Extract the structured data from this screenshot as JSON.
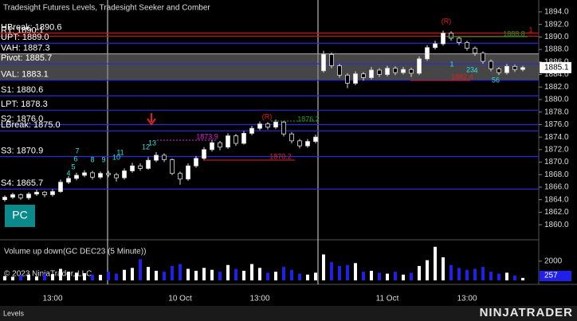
{
  "chart_data": [
    {
      "type": "candlestick",
      "title": "Tradesight Futures Levels, Tradesight Seeker and Comber",
      "categories": [
        null,
        null,
        null,
        null,
        null,
        null,
        "13:00",
        null,
        null,
        null,
        null,
        null,
        null,
        null,
        null,
        null,
        null,
        null,
        null,
        null,
        null,
        null,
        "10 Oct",
        null,
        null,
        null,
        null,
        null,
        null,
        null,
        null,
        null,
        "13:00",
        null,
        null,
        null,
        null,
        null,
        null,
        null,
        null,
        null,
        null,
        null,
        null,
        null,
        null,
        null,
        "11 Oct",
        null,
        null,
        null,
        null,
        null,
        null,
        null,
        null,
        null,
        "13:00",
        null,
        null,
        null,
        null,
        null,
        null,
        null
      ],
      "open": [
        1864.0,
        1864.4,
        1864.8,
        1864.3,
        1864.9,
        1865.2,
        1864.8,
        1865.3,
        1866.8,
        1867.4,
        1867.9,
        1868.3,
        1867.6,
        1868.2,
        1868.0,
        1867.5,
        1868.6,
        1869.4,
        1869.0,
        1870.3,
        1871.1,
        1870.4,
        1868.2,
        1867.3,
        1869.4,
        1870.6,
        1872.0,
        1873.1,
        1872.4,
        1874.2,
        1873.0,
        1874.6,
        1875.4,
        1876.1,
        1875.6,
        1876.4,
        1874.5,
        1873.4,
        1872.6,
        1873.3,
        1884.6,
        1887.2,
        1885.4,
        1883.9,
        1882.6,
        1884.1,
        1883.5,
        1884.7,
        1884.0,
        1885.0,
        1884.3,
        1884.8,
        1884.2,
        1886.5,
        1888.3,
        1888.9,
        1890.6,
        1889.8,
        1889.1,
        1888.2,
        1887.4,
        1886.1,
        1884.9,
        1884.3,
        1885.3,
        1884.8
      ],
      "high": [
        1864.7,
        1865.1,
        1865.0,
        1865.2,
        1865.6,
        1865.4,
        1865.7,
        1867.2,
        1867.8,
        1868.3,
        1868.7,
        1868.6,
        1868.5,
        1868.6,
        1868.3,
        1869.0,
        1869.9,
        1869.8,
        1870.8,
        1871.6,
        1871.4,
        1870.6,
        1868.5,
        1869.8,
        1871.0,
        1872.4,
        1873.6,
        1873.4,
        1874.6,
        1874.5,
        1875.0,
        1875.8,
        1876.5,
        1876.4,
        1876.8,
        1876.6,
        1874.8,
        1873.7,
        1873.7,
        1874.4,
        1887.8,
        1887.5,
        1885.7,
        1884.2,
        1884.5,
        1884.4,
        1885.2,
        1885.0,
        1885.4,
        1885.3,
        1885.2,
        1885.1,
        1886.9,
        1888.7,
        1889.4,
        1891.0,
        1890.9,
        1890.1,
        1889.4,
        1888.5,
        1887.7,
        1886.4,
        1885.2,
        1885.7,
        1885.6,
        1885.4
      ],
      "low": [
        1863.7,
        1864.1,
        1864.0,
        1864.0,
        1864.6,
        1864.4,
        1864.5,
        1865.1,
        1866.5,
        1867.1,
        1867.6,
        1867.2,
        1867.3,
        1867.6,
        1866.9,
        1867.2,
        1868.3,
        1868.6,
        1868.8,
        1870.0,
        1870.0,
        1867.9,
        1866.4,
        1867.0,
        1869.1,
        1870.3,
        1871.7,
        1871.9,
        1872.1,
        1872.6,
        1872.8,
        1874.3,
        1875.1,
        1875.2,
        1875.3,
        1874.1,
        1873.0,
        1872.2,
        1872.3,
        1873.0,
        1884.3,
        1885.0,
        1883.5,
        1881.8,
        1882.3,
        1883.0,
        1883.2,
        1883.6,
        1883.7,
        1883.9,
        1884.0,
        1883.6,
        1883.9,
        1886.2,
        1888.0,
        1888.6,
        1889.4,
        1888.7,
        1887.8,
        1887.0,
        1885.7,
        1884.5,
        1883.9,
        1884.0,
        1884.4,
        1884.5
      ],
      "close": [
        1864.4,
        1864.8,
        1864.3,
        1864.9,
        1865.2,
        1864.8,
        1865.3,
        1866.8,
        1867.4,
        1867.9,
        1868.3,
        1867.6,
        1868.2,
        1868.0,
        1867.5,
        1868.6,
        1869.4,
        1869.0,
        1870.3,
        1871.1,
        1870.4,
        1868.2,
        1867.3,
        1869.4,
        1870.6,
        1872.0,
        1873.1,
        1872.4,
        1874.2,
        1873.0,
        1874.6,
        1875.4,
        1876.1,
        1875.6,
        1876.4,
        1874.5,
        1873.4,
        1872.6,
        1873.3,
        1874.0,
        1887.2,
        1885.4,
        1883.9,
        1882.6,
        1884.1,
        1883.5,
        1884.7,
        1884.0,
        1885.0,
        1884.3,
        1884.8,
        1884.2,
        1886.5,
        1888.3,
        1888.9,
        1890.6,
        1889.8,
        1889.1,
        1888.2,
        1887.4,
        1886.1,
        1884.9,
        1884.3,
        1885.3,
        1884.8,
        1885.1
      ],
      "up_color": "#ffffff",
      "down_color": "#000000",
      "ylim": [
        1857.6,
        1895.9
      ],
      "yticks": [
        {
          "value": 1860,
          "label": "1860.0"
        },
        {
          "value": 1862,
          "label": "1862.0"
        },
        {
          "value": 1864,
          "label": "1864.0"
        },
        {
          "value": 1866,
          "label": "1866.0"
        },
        {
          "value": 1868,
          "label": "1868.0"
        },
        {
          "value": 1870,
          "label": "1870.0"
        },
        {
          "value": 1872,
          "label": "1872.0"
        },
        {
          "value": 1874,
          "label": "1874.0"
        },
        {
          "value": 1876,
          "label": "1876.0"
        },
        {
          "value": 1878,
          "label": "1878.0"
        },
        {
          "value": 1880,
          "label": "1880.0"
        },
        {
          "value": 1882,
          "label": "1882.0"
        },
        {
          "value": 1884,
          "label": "1884.0"
        },
        {
          "value": 1886,
          "label": "1886.0"
        },
        {
          "value": 1888,
          "label": "1888.0"
        },
        {
          "value": 1890,
          "label": "1890.0"
        },
        {
          "value": 1892,
          "label": "1892.0"
        },
        {
          "value": 1894,
          "label": "1894.0"
        }
      ],
      "levels": [
        {
          "label": "R1: 1890.1",
          "value": 1890.1,
          "color": "#d01010"
        },
        {
          "label": "HBreak: 1890.6",
          "value": 1890.6,
          "color": "#d01010"
        },
        {
          "label": "UPT: 1889.0",
          "value": 1889.0,
          "color": "#2a2ad8"
        },
        {
          "label": "VAH: 1887.3",
          "value": 1887.3,
          "color": "#9a9a9a"
        },
        {
          "label": "Pivot: 1885.7",
          "value": 1885.7,
          "color": "#2a2ad8"
        },
        {
          "label": "VAL: 1883.1",
          "value": 1883.1,
          "color": "#2a2ad8"
        },
        {
          "label": "S1: 1880.6",
          "value": 1880.6,
          "color": "#2a2ad8"
        },
        {
          "label": "LPT: 1878.3",
          "value": 1878.3,
          "color": "#2a2ad8"
        },
        {
          "label": "S2: 1876.0",
          "value": 1876.0,
          "color": "#2a2ad8"
        },
        {
          "label": "LBreak: 1875.0",
          "value": 1875.0,
          "color": "#2a2ad8"
        },
        {
          "label": "S3: 1870.9",
          "value": 1870.9,
          "color": "#2a2ad8"
        },
        {
          "label": "S4: 1865.7",
          "value": 1865.7,
          "color": "#2a2ad8"
        }
      ],
      "value_area_color": "#808080",
      "annotations": [
        {
          "text": "(R)",
          "color": "#e02020"
        },
        {
          "text": "(R)",
          "color": "#e02020"
        },
        {
          "text": "1876.2",
          "color": "#2a9a2a"
        },
        {
          "text": "1873.9",
          "color": "#e020e0"
        },
        {
          "text": "1870.2",
          "color": "#e02020"
        },
        {
          "text": "1888.8",
          "color": "#2a9a2a"
        },
        {
          "text": "1882.4",
          "color": "#e02020"
        },
        {
          "text": "4",
          "color": "#30e0e0"
        },
        {
          "text": "5",
          "color": "#30e0e0"
        },
        {
          "text": "6",
          "color": "#30e0e0"
        },
        {
          "text": "7",
          "color": "#30e0e0"
        },
        {
          "text": "8",
          "color": "#30e0e0"
        },
        {
          "text": "9",
          "color": "#30e0e0"
        },
        {
          "text": "10",
          "color": "#30e0e0"
        },
        {
          "text": "11",
          "color": "#30e0e0"
        },
        {
          "text": "12",
          "color": "#30e0e0"
        },
        {
          "text": "13",
          "color": "#30e0e0"
        },
        {
          "text": "1",
          "color": "#30e0e0"
        },
        {
          "text": "23",
          "color": "#30e0e0"
        },
        {
          "text": "4",
          "color": "#30e0e0"
        },
        {
          "text": "56",
          "color": "#30e0e0"
        },
        {
          "text": "1",
          "color": "#e02020"
        }
      ]
    },
    {
      "type": "bar",
      "title": "Volume up down(GC DEC23 (5 Minute))",
      "values": [
        450,
        380,
        520,
        600,
        410,
        700,
        650,
        1200,
        900,
        800,
        750,
        620,
        580,
        900,
        700,
        1100,
        1300,
        2200,
        1400,
        1000,
        900,
        1500,
        1700,
        1200,
        1000,
        1300,
        1100,
        900,
        1600,
        1200,
        1000,
        1700,
        1300,
        800,
        900,
        1400,
        1100,
        700,
        600,
        800,
        2700,
        1900,
        1500,
        1600,
        1800,
        900,
        1000,
        800,
        700,
        900,
        600,
        800,
        1500,
        2100,
        3500,
        2400,
        1600,
        1300,
        1100,
        1200,
        1400,
        900,
        700,
        800,
        500,
        257
      ],
      "up_color": "#ffffff",
      "down_color": "#2020e8",
      "ylim": [
        0,
        3900
      ],
      "yticks": [
        2000
      ]
    }
  ],
  "copyright": "© 2023 NinjaTrader, LLC",
  "button": "PC",
  "tab": "Levels",
  "brand": "NINJATRADER"
}
